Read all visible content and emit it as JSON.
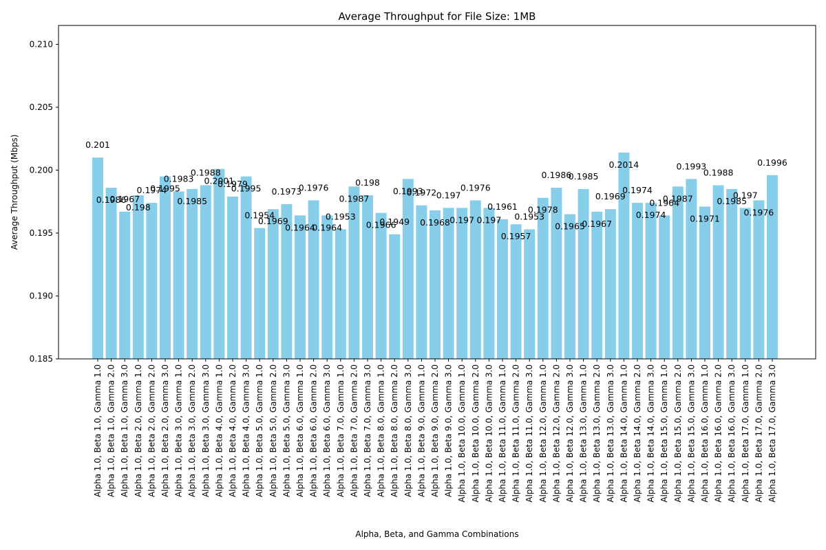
{
  "chart_data": {
    "type": "bar",
    "title": "Average Throughput for File Size: 1MB",
    "xlabel": "Alpha, Beta, and Gamma Combinations",
    "ylabel": "Average Throughput (Mbps)",
    "ylim": [
      0.185,
      0.2115
    ],
    "yticks": [
      "0.185",
      "0.190",
      "0.195",
      "0.200",
      "0.205",
      "0.210"
    ],
    "bar_color": "#87ceeb",
    "grid": false,
    "categories": [
      "Alpha 1.0, Beta 1.0, Gamma 1.0",
      "Alpha 1.0, Beta 1.0, Gamma 2.0",
      "Alpha 1.0, Beta 1.0, Gamma 3.0",
      "Alpha 1.0, Beta 2.0, Gamma 1.0",
      "Alpha 1.0, Beta 2.0, Gamma 2.0",
      "Alpha 1.0, Beta 2.0, Gamma 3.0",
      "Alpha 1.0, Beta 3.0, Gamma 1.0",
      "Alpha 1.0, Beta 3.0, Gamma 2.0",
      "Alpha 1.0, Beta 3.0, Gamma 3.0",
      "Alpha 1.0, Beta 4.0, Gamma 1.0",
      "Alpha 1.0, Beta 4.0, Gamma 2.0",
      "Alpha 1.0, Beta 4.0, Gamma 3.0",
      "Alpha 1.0, Beta 5.0, Gamma 1.0",
      "Alpha 1.0, Beta 5.0, Gamma 2.0",
      "Alpha 1.0, Beta 5.0, Gamma 3.0",
      "Alpha 1.0, Beta 6.0, Gamma 1.0",
      "Alpha 1.0, Beta 6.0, Gamma 2.0",
      "Alpha 1.0, Beta 6.0, Gamma 3.0",
      "Alpha 1.0, Beta 7.0, Gamma 1.0",
      "Alpha 1.0, Beta 7.0, Gamma 2.0",
      "Alpha 1.0, Beta 7.0, Gamma 3.0",
      "Alpha 1.0, Beta 8.0, Gamma 1.0",
      "Alpha 1.0, Beta 8.0, Gamma 2.0",
      "Alpha 1.0, Beta 8.0, Gamma 3.0",
      "Alpha 1.0, Beta 9.0, Gamma 1.0",
      "Alpha 1.0, Beta 9.0, Gamma 2.0",
      "Alpha 1.0, Beta 9.0, Gamma 3.0",
      "Alpha 1.0, Beta 10.0, Gamma 1.0",
      "Alpha 1.0, Beta 10.0, Gamma 2.0",
      "Alpha 1.0, Beta 10.0, Gamma 3.0",
      "Alpha 1.0, Beta 11.0, Gamma 1.0",
      "Alpha 1.0, Beta 11.0, Gamma 2.0",
      "Alpha 1.0, Beta 11.0, Gamma 3.0",
      "Alpha 1.0, Beta 12.0, Gamma 1.0",
      "Alpha 1.0, Beta 12.0, Gamma 2.0",
      "Alpha 1.0, Beta 12.0, Gamma 3.0",
      "Alpha 1.0, Beta 13.0, Gamma 1.0",
      "Alpha 1.0, Beta 13.0, Gamma 2.0",
      "Alpha 1.0, Beta 13.0, Gamma 3.0",
      "Alpha 1.0, Beta 14.0, Gamma 1.0",
      "Alpha 1.0, Beta 14.0, Gamma 2.0",
      "Alpha 1.0, Beta 14.0, Gamma 3.0",
      "Alpha 1.0, Beta 15.0, Gamma 1.0",
      "Alpha 1.0, Beta 15.0, Gamma 2.0",
      "Alpha 1.0, Beta 15.0, Gamma 3.0",
      "Alpha 1.0, Beta 16.0, Gamma 1.0",
      "Alpha 1.0, Beta 16.0, Gamma 2.0",
      "Alpha 1.0, Beta 16.0, Gamma 3.0",
      "Alpha 1.0, Beta 17.0, Gamma 1.0",
      "Alpha 1.0, Beta 17.0, Gamma 2.0",
      "Alpha 1.0, Beta 17.0, Gamma 3.0"
    ],
    "values": [
      0.201,
      0.1986,
      0.1967,
      0.198,
      0.1974,
      0.1995,
      0.1983,
      0.1985,
      0.1988,
      0.2001,
      0.1979,
      0.1995,
      0.1954,
      0.1969,
      0.1973,
      0.1964,
      0.1976,
      0.1964,
      0.1953,
      0.1987,
      0.198,
      0.1966,
      0.1949,
      0.1993,
      0.1972,
      0.1968,
      0.197,
      0.197,
      0.1976,
      0.197,
      0.1961,
      0.1957,
      0.1953,
      0.1978,
      0.1986,
      0.1965,
      0.1985,
      0.1967,
      0.1969,
      0.2014,
      0.1974,
      0.1974,
      0.1964,
      0.1987,
      0.1993,
      0.1971,
      0.1988,
      0.1985,
      0.197,
      0.1976,
      0.1996
    ],
    "value_labels": [
      "0.201",
      "0.1986",
      "0.1967",
      "0.198",
      "0.1974",
      "0.1995",
      "0.1983",
      "0.1985",
      "0.1988",
      "0.2001",
      "0.1979",
      "0.1995",
      "0.1954",
      "0.1969",
      "0.1973",
      "0.1964",
      "0.1976",
      "0.1964",
      "0.1953",
      "0.1987",
      "0.198",
      "0.1966",
      "0.1949",
      "0.1993",
      "0.1972",
      "0.1968",
      "0.197",
      "0.197",
      "0.1976",
      "0.197",
      "0.1961",
      "0.1957",
      "0.1953",
      "0.1978",
      "0.1986",
      "0.1965",
      "0.1985",
      "0.1967",
      "0.1969",
      "0.2014",
      "0.1974",
      "0.1974",
      "0.1964",
      "0.1987",
      "0.1993",
      "0.1971",
      "0.1988",
      "0.1985",
      "0.197",
      "0.1976",
      "0.1996"
    ]
  }
}
